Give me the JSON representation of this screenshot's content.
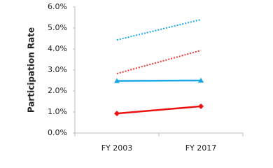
{
  "chart_data": {
    "type": "line",
    "y_label": "Participation Rate",
    "categories": [
      "FY 2003",
      "FY 2017"
    ],
    "series": [
      {
        "color": "#1aa7e8",
        "style": "dotted",
        "marker": null,
        "values": [
          4.43,
          5.4
        ]
      },
      {
        "color": "#ee3333",
        "style": "dotted",
        "marker": null,
        "values": [
          2.83,
          3.93
        ]
      },
      {
        "color": "#1aa7e8",
        "style": "solid",
        "marker": "triangle",
        "values": [
          2.48,
          2.5
        ]
      },
      {
        "color": "#ee1111",
        "style": "solid",
        "marker": "diamond",
        "values": [
          0.93,
          1.27
        ]
      }
    ],
    "ylim": [
      0,
      6
    ],
    "yticks": [
      {
        "value": 0,
        "label": "0.0%"
      },
      {
        "value": 1,
        "label": "1.0%"
      },
      {
        "value": 2,
        "label": "2.0%"
      },
      {
        "value": 3,
        "label": "3.0%"
      },
      {
        "value": 4,
        "label": "4.0%"
      },
      {
        "value": 5,
        "label": "5.0%"
      },
      {
        "value": 6,
        "label": "6.0%"
      }
    ],
    "grid": false
  }
}
